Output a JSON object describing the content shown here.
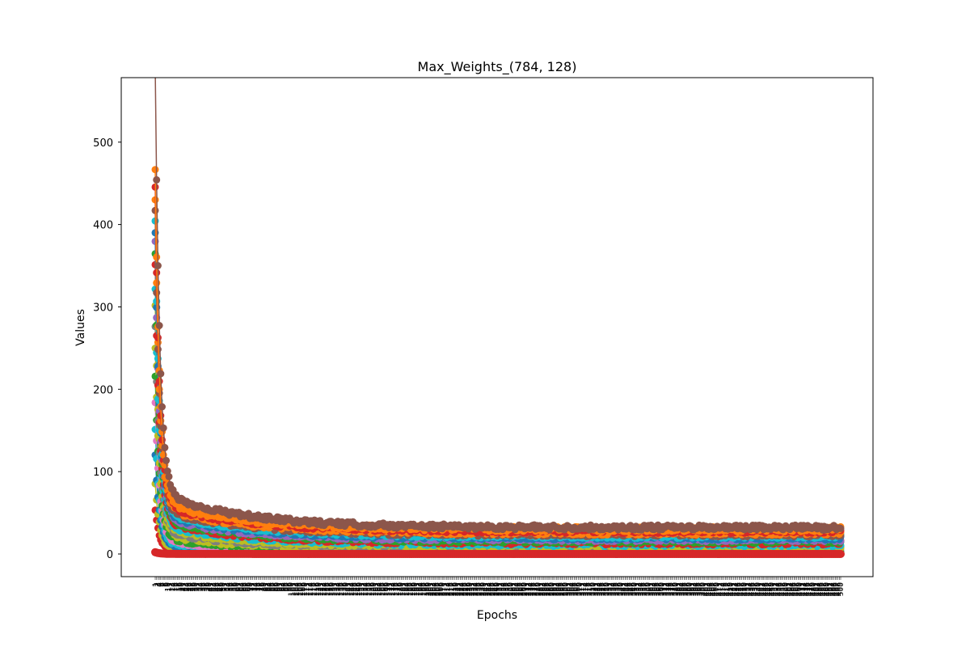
{
  "chart_data": {
    "type": "line",
    "title": "Max_Weights_(784, 128)",
    "xlabel": "Epochs",
    "ylabel": "Values",
    "xlim": [
      1,
      500
    ],
    "ylim": [
      -25,
      580
    ],
    "yticks": [
      0,
      100,
      200,
      300,
      400,
      500
    ],
    "grid": false,
    "legend": "none",
    "series_count": 128,
    "colors": [
      "#1f77b4",
      "#ff7f0e",
      "#2ca02c",
      "#d62728",
      "#9467bd",
      "#8c564b",
      "#e377c2",
      "#7f7f7f",
      "#bcbd22",
      "#17becf"
    ],
    "series_profiles": [
      {
        "peak": 550,
        "plateau": 32,
        "color_index": 5
      },
      {
        "peak": 432,
        "plateau": 30,
        "color_index": 1
      },
      {
        "peak": 412,
        "plateau": 28,
        "color_index": 3
      },
      {
        "peak": 398,
        "plateau": 26,
        "color_index": 1
      },
      {
        "peak": 385,
        "plateau": 24,
        "color_index": 5
      },
      {
        "peak": 372,
        "plateau": 22,
        "color_index": 9
      },
      {
        "peak": 360,
        "plateau": 20,
        "color_index": 0
      },
      {
        "peak": 350,
        "plateau": 18,
        "color_index": 4
      },
      {
        "peak": 340,
        "plateau": 16,
        "color_index": 2
      },
      {
        "peak": 325,
        "plateau": 14,
        "color_index": 3
      },
      {
        "peak": 300,
        "plateau": 12,
        "color_index": 9
      },
      {
        "peak": 280,
        "plateau": 10,
        "color_index": 8
      },
      {
        "peak": 255,
        "plateau": 8,
        "color_index": 7
      },
      {
        "peak": 230,
        "plateau": 6,
        "color_index": 8
      },
      {
        "peak": 200,
        "plateau": 4,
        "color_index": 2
      },
      {
        "peak": 170,
        "plateau": 3,
        "color_index": 6
      },
      {
        "peak": 140,
        "plateau": 2,
        "color_index": 9
      },
      {
        "peak": 110,
        "plateau": 1,
        "color_index": 0
      },
      {
        "peak": 80,
        "plateau": 0.5,
        "color_index": 8
      },
      {
        "peak": 50,
        "plateau": 0,
        "color_index": 3
      }
    ]
  }
}
